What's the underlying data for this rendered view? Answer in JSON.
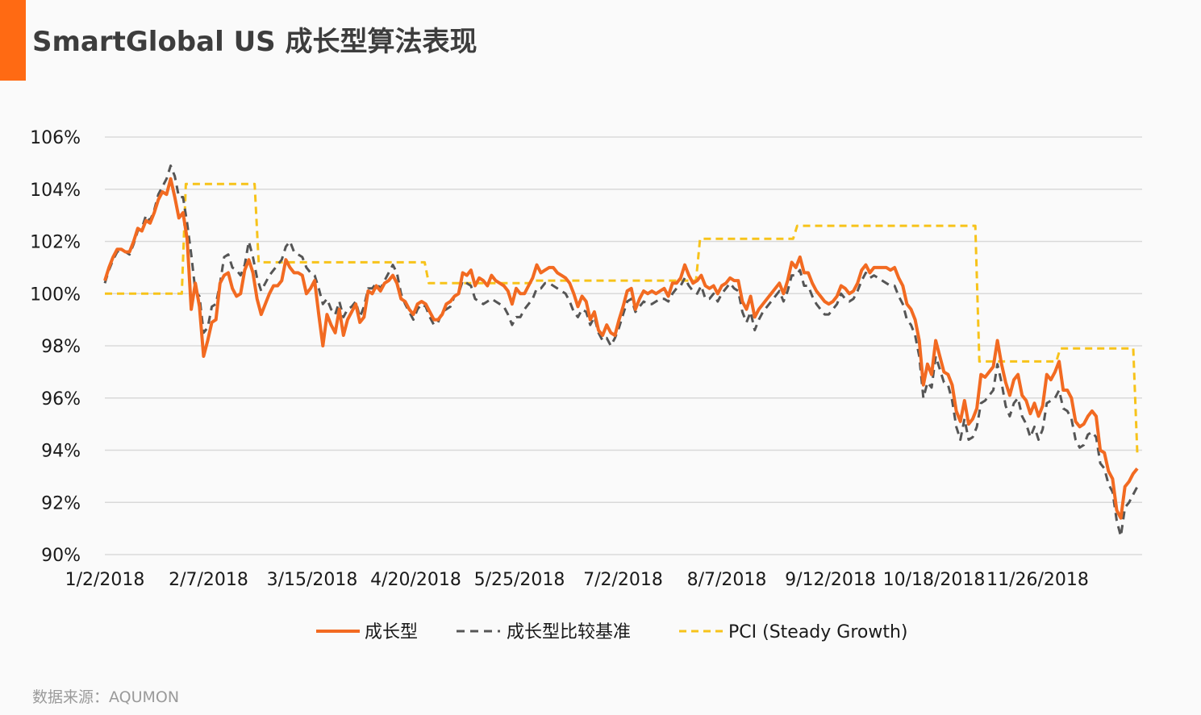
{
  "header": {
    "title": "SmartGlobal US 成长型算法表现"
  },
  "source": "数据来源：AQUMON",
  "colors": {
    "accent": "#ff6a13",
    "growth": "#f26a21",
    "benchmark": "#555555",
    "pci": "#f7c31a",
    "grid": "#d9d9d9"
  },
  "chart_data": {
    "type": "line",
    "x_tick_labels": [
      "1/2/2018",
      "2/7/2018",
      "3/15/2018",
      "4/20/2018",
      "5/25/2018",
      "7/2/2018",
      "8/7/2018",
      "9/12/2018",
      "10/18/2018",
      "11/26/2018"
    ],
    "y_tick_labels": [
      "106%",
      "104%",
      "102%",
      "100%",
      "98%",
      "96%",
      "94%",
      "92%",
      "90%"
    ],
    "ylim": [
      90,
      106
    ],
    "grid": "horizontal",
    "legend_position": "bottom",
    "series": [
      {
        "name": "成长型",
        "style": "solid",
        "values": [
          100.5,
          101.0,
          101.4,
          101.7,
          101.7,
          101.6,
          101.6,
          102.0,
          102.5,
          102.4,
          102.8,
          102.7,
          103.1,
          103.6,
          103.9,
          103.8,
          104.4,
          103.7,
          102.9,
          103.1,
          102.1,
          99.4,
          100.4,
          99.5,
          97.6,
          98.2,
          98.9,
          99.0,
          100.4,
          100.7,
          100.8,
          100.2,
          99.9,
          100.0,
          100.9,
          101.3,
          100.8,
          99.8,
          99.2,
          99.6,
          100.0,
          100.3,
          100.3,
          100.5,
          101.3,
          101.0,
          100.8,
          100.8,
          100.7,
          100.0,
          100.2,
          100.5,
          99.2,
          98.0,
          99.2,
          98.8,
          98.5,
          99.4,
          98.4,
          99.0,
          99.3,
          99.6,
          98.9,
          99.1,
          100.1,
          100.0,
          100.3,
          100.1,
          100.4,
          100.5,
          100.7,
          100.4,
          99.8,
          99.7,
          99.4,
          99.2,
          99.6,
          99.7,
          99.6,
          99.3,
          99.0,
          99.0,
          99.2,
          99.6,
          99.7,
          99.9,
          100.0,
          100.8,
          100.7,
          100.9,
          100.3,
          100.6,
          100.5,
          100.3,
          100.7,
          100.5,
          100.4,
          100.3,
          100.1,
          99.6,
          100.2,
          100.0,
          100.0,
          100.3,
          100.6,
          101.1,
          100.8,
          100.9,
          101.0,
          101.0,
          100.8,
          100.7,
          100.6,
          100.4,
          100.0,
          99.5,
          99.9,
          99.7,
          99.0,
          99.3,
          98.6,
          98.4,
          98.8,
          98.5,
          98.4,
          99.0,
          99.5,
          100.1,
          100.2,
          99.4,
          99.8,
          100.1,
          100.0,
          100.1,
          100.0,
          100.1,
          100.2,
          99.9,
          100.4,
          100.4,
          100.6,
          101.1,
          100.7,
          100.4,
          100.5,
          100.7,
          100.3,
          100.2,
          100.3,
          100.0,
          100.3,
          100.4,
          100.6,
          100.5,
          100.5,
          99.7,
          99.4,
          99.9,
          99.1,
          99.4,
          99.6,
          99.8,
          100.0,
          100.2,
          100.4,
          100.0,
          100.5,
          101.2,
          101.0,
          101.4,
          100.8,
          100.8,
          100.4,
          100.1,
          99.9,
          99.7,
          99.6,
          99.7,
          99.9,
          100.3,
          100.2,
          100.0,
          100.1,
          100.4,
          100.9,
          101.1,
          100.8,
          101.0,
          101.0,
          101.0,
          101.0,
          100.9,
          101.0,
          100.6,
          100.3,
          99.6,
          99.4,
          99.0,
          98.2,
          96.5,
          97.3,
          96.9,
          98.2,
          97.6,
          97.0,
          96.9,
          96.5,
          95.5,
          95.1,
          95.9,
          95.0,
          95.2,
          95.6,
          96.9,
          96.8,
          97.0,
          97.2,
          98.2,
          97.3,
          96.6,
          96.1,
          96.7,
          96.9,
          96.1,
          95.9,
          95.4,
          95.8,
          95.3,
          95.7,
          96.9,
          96.7,
          97.0,
          97.4,
          96.3,
          96.3,
          96.0,
          95.1,
          94.9,
          95.0,
          95.3,
          95.5,
          95.3,
          94.0,
          93.9,
          93.2,
          92.9,
          91.7,
          91.4,
          92.6,
          92.8,
          93.1,
          93.3
        ],
        "values_range": "full"
      },
      {
        "name": "成长型比较基准",
        "style": "dashed",
        "values": [
          100.4,
          100.9,
          101.3,
          101.6,
          101.7,
          101.6,
          101.5,
          101.9,
          102.4,
          102.5,
          103.0,
          102.8,
          103.2,
          103.8,
          104.1,
          104.4,
          104.9,
          104.5,
          103.7,
          103.7,
          102.7,
          101.5,
          100.1,
          99.9,
          98.5,
          98.7,
          99.5,
          99.6,
          100.4,
          101.4,
          101.5,
          101.0,
          100.9,
          100.7,
          101.1,
          102.0,
          101.4,
          100.6,
          100.1,
          100.4,
          100.7,
          100.9,
          101.1,
          101.3,
          101.8,
          102.0,
          101.6,
          101.5,
          101.4,
          101.0,
          100.8,
          100.7,
          100.2,
          99.6,
          99.8,
          99.4,
          99.2,
          99.7,
          99.1,
          99.4,
          99.5,
          99.7,
          99.1,
          99.5,
          100.2,
          100.2,
          100.4,
          100.2,
          100.5,
          100.8,
          101.1,
          100.8,
          100.0,
          99.6,
          99.3,
          99.0,
          99.4,
          99.6,
          99.5,
          99.1,
          98.8,
          98.9,
          99.3,
          99.4,
          99.5,
          99.9,
          100.0,
          100.5,
          100.4,
          100.3,
          99.8,
          99.7,
          99.6,
          99.7,
          99.8,
          99.7,
          99.6,
          99.5,
          99.2,
          98.8,
          99.1,
          99.1,
          99.4,
          99.6,
          99.8,
          100.2,
          100.2,
          100.4,
          100.4,
          100.3,
          100.2,
          100.1,
          100.0,
          99.7,
          99.3,
          99.1,
          99.4,
          99.3,
          98.8,
          99.1,
          98.5,
          98.2,
          98.3,
          98.0,
          98.3,
          98.7,
          99.2,
          99.7,
          99.8,
          99.3,
          99.5,
          99.7,
          99.6,
          99.6,
          99.7,
          99.8,
          99.8,
          99.7,
          100.0,
          100.2,
          100.3,
          100.6,
          100.3,
          100.1,
          100.0,
          100.3,
          99.8,
          99.8,
          100.0,
          99.7,
          100.0,
          100.2,
          100.4,
          100.2,
          100.1,
          99.3,
          98.9,
          99.3,
          98.6,
          99.0,
          99.3,
          99.5,
          99.7,
          99.9,
          100.1,
          99.7,
          100.1,
          100.7,
          100.7,
          100.9,
          100.3,
          100.3,
          99.9,
          99.6,
          99.4,
          99.2,
          99.2,
          99.4,
          99.6,
          100.0,
          99.8,
          99.7,
          99.8,
          100.1,
          100.5,
          100.8,
          100.6,
          100.7,
          100.6,
          100.5,
          100.4,
          100.3,
          100.3,
          99.9,
          99.6,
          99.0,
          98.8,
          98.4,
          97.6,
          96.0,
          96.6,
          96.4,
          97.6,
          97.1,
          96.6,
          96.5,
          95.9,
          94.9,
          94.4,
          95.2,
          94.4,
          94.5,
          94.9,
          95.8,
          95.9,
          96.1,
          96.3,
          97.3,
          96.6,
          95.7,
          95.3,
          95.8,
          96.0,
          95.3,
          95.0,
          94.5,
          94.9,
          94.4,
          94.8,
          95.8,
          95.9,
          96.0,
          96.3,
          95.6,
          95.5,
          95.2,
          94.4,
          94.1,
          94.2,
          94.6,
          94.7,
          94.5,
          93.5,
          93.3,
          92.7,
          92.4,
          91.3,
          90.7,
          91.8,
          92.0,
          92.3,
          92.6
        ]
      },
      {
        "name": "PCI (Steady Growth)",
        "style": "dashed",
        "values": [
          100.0,
          100.0,
          100.0,
          100.0,
          100.0,
          100.0,
          100.0,
          100.0,
          100.0,
          100.0,
          100.0,
          100.0,
          100.0,
          100.0,
          100.0,
          100.0,
          100.0,
          100.0,
          100.0,
          100.0,
          104.2,
          104.2,
          104.2,
          104.2,
          104.2,
          104.2,
          104.2,
          104.2,
          104.2,
          104.2,
          104.2,
          104.2,
          104.2,
          104.2,
          104.2,
          104.2,
          104.2,
          104.2,
          101.2,
          101.2,
          101.2,
          101.2,
          101.2,
          101.2,
          101.2,
          101.2,
          101.2,
          101.2,
          101.2,
          101.2,
          101.2,
          101.2,
          101.2,
          101.2,
          101.2,
          101.2,
          101.2,
          101.2,
          101.2,
          101.2,
          101.2,
          101.2,
          101.2,
          101.2,
          101.2,
          101.2,
          101.2,
          101.2,
          101.2,
          101.2,
          101.2,
          101.2,
          101.2,
          101.2,
          101.2,
          101.2,
          101.2,
          101.2,
          101.2,
          101.2,
          100.4,
          100.4,
          100.4,
          100.4,
          100.4,
          100.4,
          100.4,
          100.4,
          100.4,
          100.4,
          100.4,
          100.4,
          100.4,
          100.4,
          100.4,
          100.4,
          100.4,
          100.4,
          100.4,
          100.4,
          100.4,
          100.4,
          100.4,
          100.4,
          100.4,
          100.4,
          100.5,
          100.5,
          100.5,
          100.5,
          100.5,
          100.5,
          100.5,
          100.5,
          100.5,
          100.5,
          100.5,
          100.5,
          100.5,
          100.5,
          100.5,
          100.5,
          100.5,
          100.5,
          100.5,
          100.5,
          100.5,
          100.5,
          100.5,
          100.5,
          100.5,
          100.5,
          100.5,
          100.5,
          100.5,
          100.5,
          100.5,
          100.5,
          100.5,
          100.5,
          100.5,
          100.5,
          100.5,
          100.5,
          100.5,
          100.5,
          100.5,
          102.1,
          102.1,
          102.1,
          102.1,
          102.1,
          102.1,
          102.1,
          102.1,
          102.1,
          102.1,
          102.1,
          102.1,
          102.1,
          102.1,
          102.1,
          102.1,
          102.1,
          102.1,
          102.1,
          102.1,
          102.1,
          102.1,
          102.1,
          102.1,
          102.6,
          102.6,
          102.6,
          102.6,
          102.6,
          102.6,
          102.6,
          102.6,
          102.6,
          102.6,
          102.6,
          102.6,
          102.6,
          102.6,
          102.6,
          102.6,
          102.6,
          102.6,
          102.6,
          102.6,
          102.6,
          102.6,
          102.6,
          102.6,
          102.6,
          102.6,
          102.6,
          102.6,
          102.6,
          102.6,
          102.6,
          102.6,
          102.6,
          102.6,
          102.6,
          102.6,
          102.6,
          102.6,
          102.6,
          102.6,
          102.6,
          102.6,
          102.6,
          102.6,
          102.6,
          97.4,
          97.4,
          97.4,
          97.4,
          97.4,
          97.4,
          97.4,
          97.4,
          97.4,
          97.4,
          97.4,
          97.4,
          97.4,
          97.4,
          97.4,
          97.4,
          97.4,
          97.4,
          97.4,
          97.4,
          97.9,
          97.9,
          97.9,
          97.9,
          97.9,
          97.9,
          97.9,
          97.9,
          97.9,
          97.9,
          97.9,
          97.9,
          97.9,
          97.9,
          97.9,
          97.9,
          97.9,
          97.9,
          97.9,
          93.9
        ]
      }
    ]
  }
}
